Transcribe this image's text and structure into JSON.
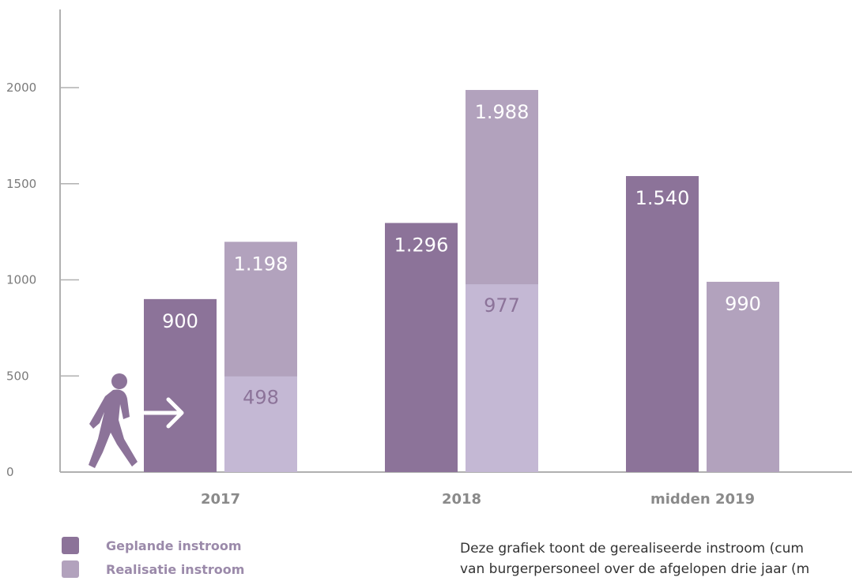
{
  "chart_data": {
    "type": "bar",
    "categories": [
      "2017",
      "2018",
      "midden 2019"
    ],
    "yticks": [
      0,
      500,
      1000,
      1500,
      2000
    ],
    "ylim": [
      0,
      2300
    ],
    "series": [
      {
        "name": "Geplande instroom",
        "values": [
          900,
          1296,
          1540
        ],
        "labels": [
          "900",
          "1.296",
          "1.540"
        ]
      },
      {
        "name": "Realisatie instroom",
        "values": [
          1198,
          1988,
          990
        ],
        "labels": [
          "1.198",
          "1.988",
          "990"
        ],
        "segment_values": [
          498,
          977,
          null
        ],
        "segment_labels": [
          "498",
          "977",
          ""
        ]
      }
    ],
    "legend": [
      "Geplande instroom",
      "Realisatie instroom"
    ],
    "colors": {
      "planned": "#8c7399",
      "realised": "#b2a2bd",
      "realised_segment": "#c4b8d4"
    }
  },
  "icons": {
    "walker": "walking-person-icon",
    "arrow": "arrow-right-icon"
  },
  "caption": {
    "line1": "Deze grafiek toont de gerealiseerde instroom (cum",
    "line2": "van burgerpersoneel over de afgelopen drie jaar (m"
  }
}
